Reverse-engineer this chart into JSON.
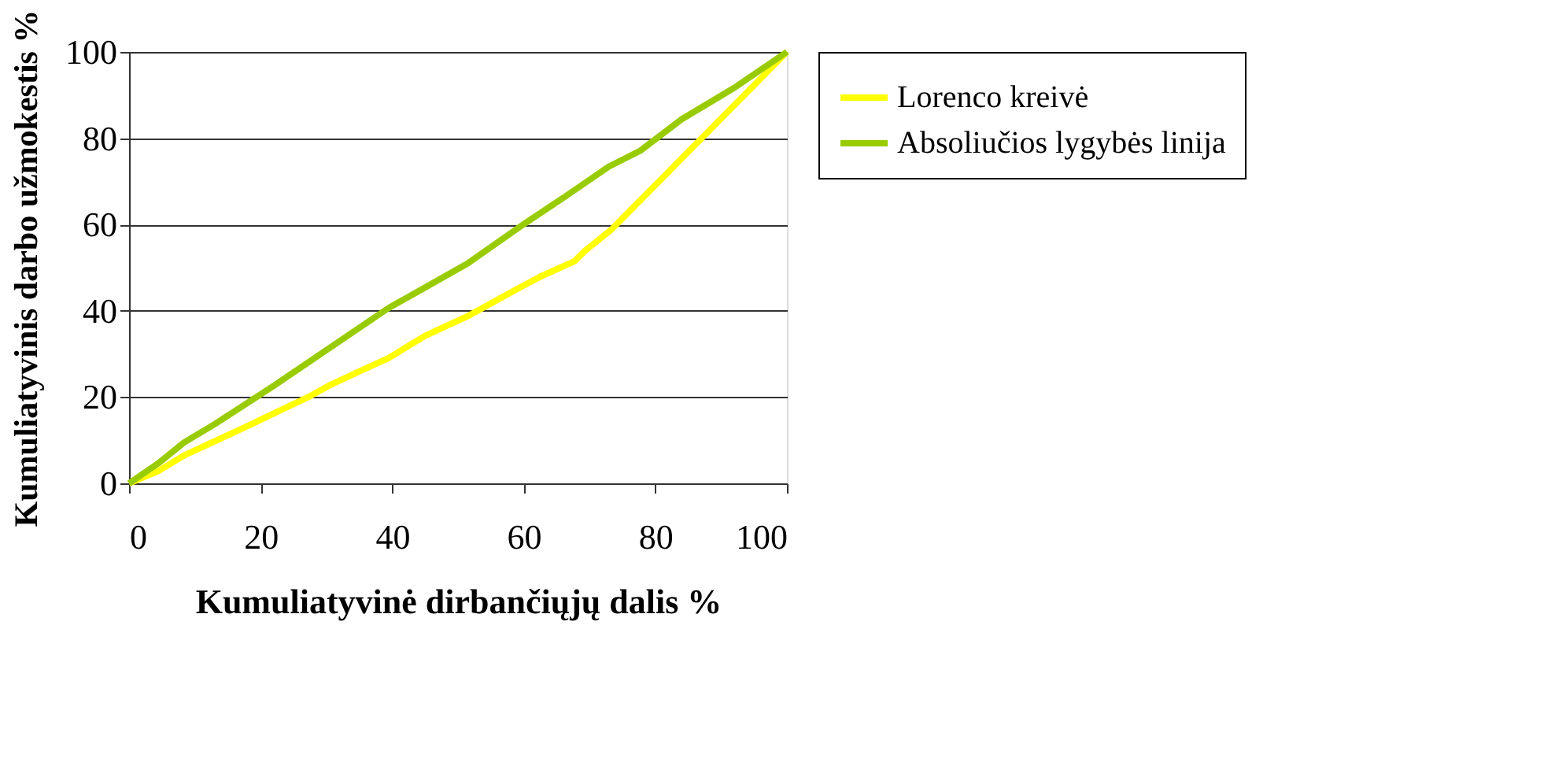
{
  "chart_data": {
    "type": "line",
    "xlabel": "Kumuliatyvinė dirbančiųjų dalis %",
    "ylabel": "Kumuliatyvinis darbo užmokestis %",
    "xlim": [
      0,
      100
    ],
    "xticks": [
      0,
      20,
      40,
      60,
      80,
      100
    ],
    "ylim": [
      0,
      100
    ],
    "yticks": [
      0,
      20,
      40,
      60,
      80,
      100
    ],
    "grid": "y",
    "legend": "right",
    "marker": "none",
    "line_style": "solid",
    "series": [
      {
        "name": "Lorenco kreivė",
        "color": "#ffff00",
        "x": [
          0,
          4.4,
          8.4,
          17.9,
          27.5,
          30.7,
          35.5,
          39.4,
          45,
          51.4,
          59.4,
          62.5,
          67.7,
          69.3,
          73.3,
          100
        ],
        "values": [
          0,
          2.8,
          6.5,
          13.2,
          20.2,
          22.9,
          26.3,
          29,
          34.2,
          38.7,
          45.4,
          47.9,
          51.5,
          53.9,
          58.8,
          100
        ]
      },
      {
        "name": "Absoliučios lygybės linija",
        "color": "#99cc00",
        "x": [
          0,
          4.4,
          8.4,
          13.1,
          21.9,
          39.4,
          51.4,
          60.2,
          66.5,
          72.9,
          77.7,
          84,
          92,
          100
        ],
        "values": [
          0,
          4.6,
          9.5,
          13.8,
          22.5,
          40.6,
          50.9,
          60.3,
          66.7,
          73.4,
          77.1,
          84.4,
          91.7,
          100
        ]
      }
    ]
  }
}
